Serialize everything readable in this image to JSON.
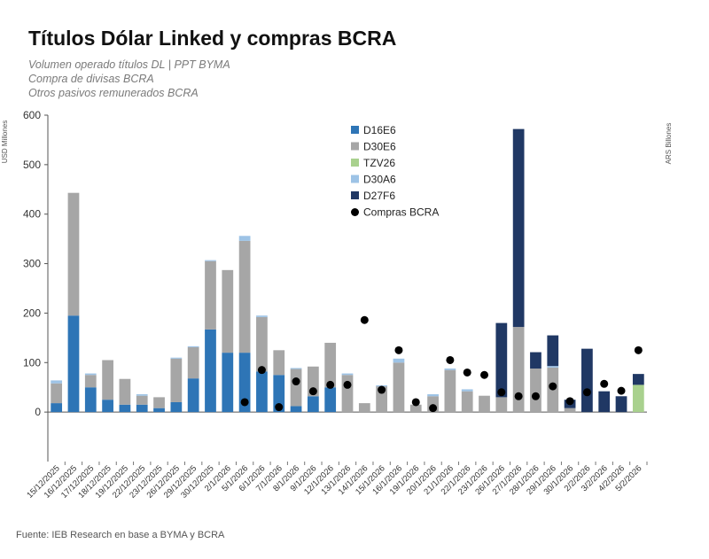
{
  "chart_data": {
    "type": "bar",
    "stacked": true,
    "title": "Títulos Dólar Linked y compras BCRA",
    "subtitles": [
      "Volumen operado títulos DL | PPT BYMA",
      "Compra de divisas BCRA",
      "Otros pasivos remunerados BCRA"
    ],
    "ylabel": "USD Millones",
    "y2label": "ARS Billones",
    "ylim": [
      -100,
      600
    ],
    "yticks": [
      0,
      100,
      200,
      300,
      400,
      500,
      600
    ],
    "legend_position": "top-center",
    "source": "Fuente: IEB Research en base a BYMA y BCRA",
    "categories": [
      "15/12/2025",
      "16/12/2025",
      "17/12/2025",
      "18/12/2025",
      "19/12/2025",
      "22/12/2025",
      "23/12/2025",
      "26/12/2025",
      "29/12/2025",
      "30/12/2025",
      "2/1/2026",
      "5/1/2026",
      "6/1/2026",
      "7/1/2026",
      "8/1/2026",
      "9/1/2026",
      "12/1/2026",
      "13/1/2026",
      "14/1/2026",
      "15/1/2026",
      "16/1/2026",
      "19/1/2026",
      "20/1/2026",
      "21/1/2026",
      "22/1/2026",
      "23/1/2026",
      "26/1/2026",
      "27/1/2026",
      "28/1/2026",
      "29/1/2026",
      "30/1/2026",
      "2/2/2026",
      "3/2/2026",
      "4/2/2026",
      "5/2/2026"
    ],
    "series": [
      {
        "name": "D16E6",
        "color": "#2e75b6",
        "values": [
          18,
          195,
          50,
          25,
          15,
          15,
          8,
          20,
          68,
          167,
          120,
          120,
          82,
          75,
          12,
          32,
          50,
          0,
          0,
          0,
          0,
          0,
          0,
          0,
          0,
          0,
          0,
          0,
          0,
          0,
          0,
          0,
          0,
          0,
          0
        ]
      },
      {
        "name": "D30E6",
        "color": "#a6a6a6",
        "values": [
          40,
          248,
          25,
          80,
          52,
          18,
          22,
          88,
          63,
          138,
          167,
          226,
          110,
          50,
          75,
          60,
          90,
          75,
          18,
          52,
          100,
          15,
          32,
          85,
          42,
          33,
          30,
          172,
          88,
          90,
          8,
          0,
          0,
          0,
          0
        ]
      },
      {
        "name": "TZV26",
        "color": "#a9d18e",
        "values": [
          0,
          0,
          0,
          0,
          0,
          0,
          0,
          0,
          0,
          0,
          0,
          0,
          0,
          0,
          0,
          0,
          0,
          0,
          0,
          0,
          0,
          0,
          0,
          0,
          0,
          0,
          0,
          0,
          0,
          0,
          0,
          0,
          0,
          0,
          55
        ]
      },
      {
        "name": "D30A6",
        "color": "#9dc3e6",
        "values": [
          6,
          0,
          3,
          0,
          0,
          3,
          0,
          2,
          2,
          2,
          0,
          10,
          3,
          0,
          2,
          0,
          0,
          3,
          0,
          2,
          8,
          0,
          4,
          3,
          4,
          0,
          0,
          0,
          0,
          3,
          0,
          0,
          0,
          0,
          0
        ]
      },
      {
        "name": "D27F6",
        "color": "#203864",
        "values": [
          0,
          0,
          0,
          0,
          0,
          0,
          0,
          0,
          0,
          0,
          0,
          0,
          0,
          0,
          0,
          0,
          0,
          0,
          0,
          0,
          0,
          0,
          0,
          0,
          0,
          0,
          150,
          400,
          33,
          62,
          17,
          128,
          42,
          32,
          22
        ]
      },
      {
        "name": "Compras BCRA",
        "type": "scatter",
        "color": "#000000",
        "values": [
          null,
          null,
          null,
          null,
          null,
          null,
          null,
          null,
          null,
          null,
          null,
          20,
          85,
          10,
          62,
          42,
          55,
          55,
          186,
          45,
          125,
          20,
          8,
          105,
          80,
          75,
          40,
          32,
          32,
          52,
          22,
          40,
          57,
          43,
          125
        ]
      }
    ]
  }
}
